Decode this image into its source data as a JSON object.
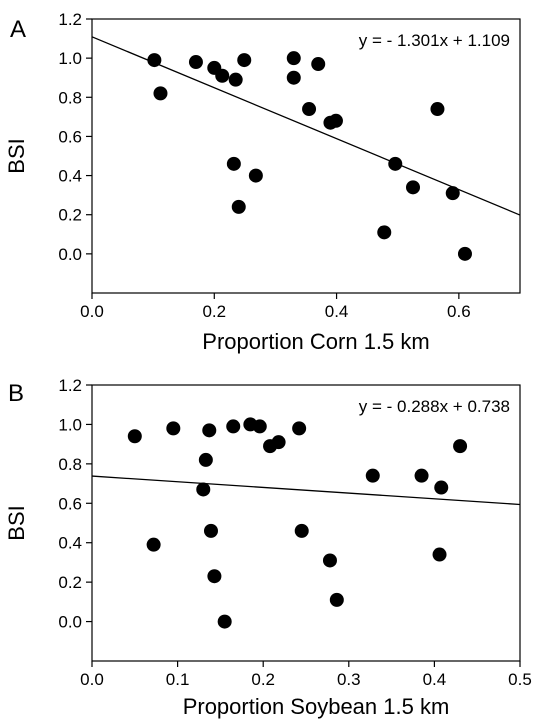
{
  "chart_data": [
    {
      "type": "scatter",
      "panel_label": "A",
      "equation": "y = - 1.301x + 1.109",
      "xlabel": "Proportion Corn 1.5 km",
      "ylabel": "BSI",
      "xlim": [
        0.0,
        0.7
      ],
      "ylim": [
        -0.2,
        1.2
      ],
      "xticks": [
        0.0,
        0.2,
        0.4,
        0.6
      ],
      "xtick_labels": [
        "0.0",
        "0.2",
        "0.4",
        "0.6"
      ],
      "yticks": [
        0.0,
        0.2,
        0.4,
        0.6,
        0.8,
        1.0,
        1.2
      ],
      "ytick_labels": [
        "0.0",
        "0.2",
        "0.4",
        "0.6",
        "0.8",
        "1.0",
        "1.2"
      ],
      "grid": false,
      "fit": {
        "slope": -1.301,
        "intercept": 1.109
      },
      "points": [
        {
          "x": 0.102,
          "y": 0.99
        },
        {
          "x": 0.112,
          "y": 0.82
        },
        {
          "x": 0.17,
          "y": 0.98
        },
        {
          "x": 0.2,
          "y": 0.95
        },
        {
          "x": 0.213,
          "y": 0.91
        },
        {
          "x": 0.235,
          "y": 0.89
        },
        {
          "x": 0.249,
          "y": 0.99
        },
        {
          "x": 0.232,
          "y": 0.46
        },
        {
          "x": 0.24,
          "y": 0.24
        },
        {
          "x": 0.268,
          "y": 0.4
        },
        {
          "x": 0.33,
          "y": 1.0
        },
        {
          "x": 0.33,
          "y": 0.9
        },
        {
          "x": 0.37,
          "y": 0.97
        },
        {
          "x": 0.355,
          "y": 0.74
        },
        {
          "x": 0.39,
          "y": 0.67
        },
        {
          "x": 0.399,
          "y": 0.68
        },
        {
          "x": 0.496,
          "y": 0.46
        },
        {
          "x": 0.478,
          "y": 0.11
        },
        {
          "x": 0.525,
          "y": 0.34
        },
        {
          "x": 0.565,
          "y": 0.74
        },
        {
          "x": 0.59,
          "y": 0.31
        },
        {
          "x": 0.61,
          "y": 0.0
        }
      ]
    },
    {
      "type": "scatter",
      "panel_label": "B",
      "equation": "y = - 0.288x + 0.738",
      "xlabel": "Proportion Soybean 1.5 km",
      "ylabel": "BSI",
      "xlim": [
        0.0,
        0.5
      ],
      "ylim": [
        -0.2,
        1.2
      ],
      "xticks": [
        0.0,
        0.1,
        0.2,
        0.3,
        0.4,
        0.5
      ],
      "xtick_labels": [
        "0.0",
        "0.1",
        "0.2",
        "0.3",
        "0.4",
        "0.5"
      ],
      "yticks": [
        0.0,
        0.2,
        0.4,
        0.6,
        0.8,
        1.0,
        1.2
      ],
      "ytick_labels": [
        "0.0",
        "0.2",
        "0.4",
        "0.6",
        "0.8",
        "1.0",
        "1.2"
      ],
      "grid": false,
      "fit": {
        "slope": -0.288,
        "intercept": 0.738
      },
      "points": [
        {
          "x": 0.05,
          "y": 0.94
        },
        {
          "x": 0.072,
          "y": 0.39
        },
        {
          "x": 0.095,
          "y": 0.98
        },
        {
          "x": 0.13,
          "y": 0.67
        },
        {
          "x": 0.133,
          "y": 0.82
        },
        {
          "x": 0.137,
          "y": 0.97
        },
        {
          "x": 0.139,
          "y": 0.46
        },
        {
          "x": 0.143,
          "y": 0.23
        },
        {
          "x": 0.155,
          "y": 0.0
        },
        {
          "x": 0.165,
          "y": 0.99
        },
        {
          "x": 0.185,
          "y": 1.0
        },
        {
          "x": 0.196,
          "y": 0.99
        },
        {
          "x": 0.208,
          "y": 0.89
        },
        {
          "x": 0.218,
          "y": 0.91
        },
        {
          "x": 0.242,
          "y": 0.98
        },
        {
          "x": 0.245,
          "y": 0.46
        },
        {
          "x": 0.278,
          "y": 0.31
        },
        {
          "x": 0.286,
          "y": 0.11
        },
        {
          "x": 0.328,
          "y": 0.74
        },
        {
          "x": 0.385,
          "y": 0.74
        },
        {
          "x": 0.406,
          "y": 0.34
        },
        {
          "x": 0.408,
          "y": 0.68
        },
        {
          "x": 0.43,
          "y": 0.89
        }
      ]
    }
  ]
}
